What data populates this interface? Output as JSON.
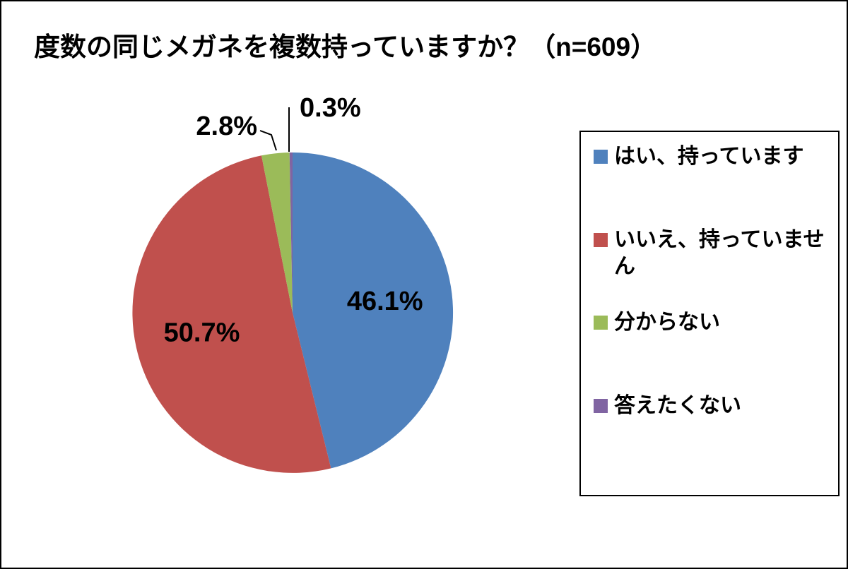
{
  "chart_data": {
    "type": "pie",
    "title": "度数の同じメガネを複数持っていますか？（n=609）",
    "n": 609,
    "legend_position": "right",
    "start_angle_deg": 0,
    "direction": "clockwise",
    "slices": [
      {
        "label": "はい、持っています",
        "value": 46.1,
        "display": "46.1%",
        "color": "#4F81BD",
        "label_placement": "inside"
      },
      {
        "label": "いいえ、持っていません",
        "value": 50.7,
        "display": "50.7%",
        "color": "#C0504D",
        "label_placement": "inside"
      },
      {
        "label": "分からない",
        "value": 2.8,
        "display": "2.8%",
        "color": "#9BBB59",
        "label_placement": "outside"
      },
      {
        "label": "答えたくない",
        "value": 0.3,
        "display": "0.3%",
        "color": "#8064A2",
        "label_placement": "outside"
      }
    ]
  }
}
